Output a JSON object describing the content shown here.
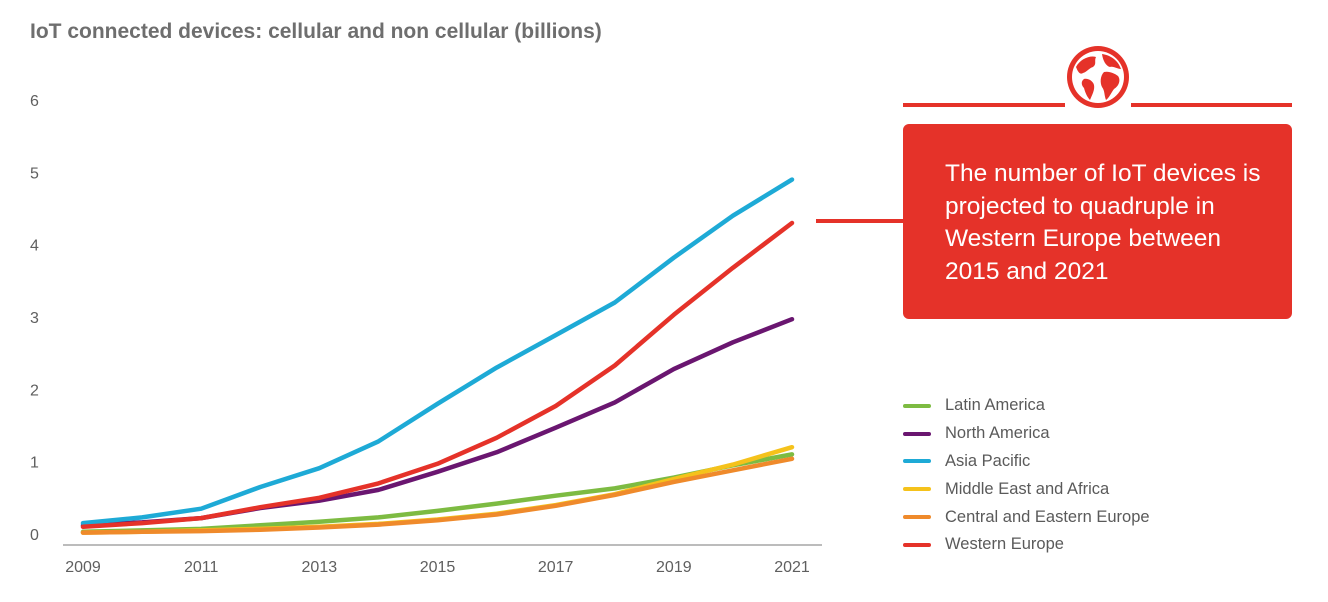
{
  "chart_data": {
    "type": "line",
    "title": "IoT connected devices: cellular and non cellular (billions)",
    "xlabel": "",
    "ylabel": "",
    "x": [
      2009,
      2010,
      2011,
      2012,
      2013,
      2014,
      2015,
      2016,
      2017,
      2018,
      2019,
      2020,
      2021
    ],
    "x_ticks": [
      "2009",
      "2011",
      "2013",
      "2015",
      "2017",
      "2019",
      "2021"
    ],
    "y_ticks": [
      "0",
      "1",
      "2",
      "3",
      "4",
      "5",
      "6"
    ],
    "xlim": [
      2009,
      2021
    ],
    "ylim": [
      0,
      6
    ],
    "grid": false,
    "legend_position": "right",
    "series": [
      {
        "name": "Latin America",
        "color": "#7dbb42",
        "values": [
          0.03,
          0.05,
          0.07,
          0.12,
          0.17,
          0.23,
          0.32,
          0.42,
          0.53,
          0.63,
          0.78,
          0.95,
          1.1
        ]
      },
      {
        "name": "North America",
        "color": "#6a1670",
        "values": [
          0.12,
          0.16,
          0.22,
          0.36,
          0.46,
          0.61,
          0.86,
          1.13,
          1.47,
          1.82,
          2.28,
          2.65,
          2.97
        ]
      },
      {
        "name": "Asia Pacific",
        "color": "#1eaad6",
        "values": [
          0.15,
          0.23,
          0.35,
          0.65,
          0.91,
          1.28,
          1.8,
          2.3,
          2.75,
          3.2,
          3.82,
          4.4,
          4.9
        ]
      },
      {
        "name": "Middle East and Africa",
        "color": "#f5c21b",
        "values": [
          0.02,
          0.03,
          0.05,
          0.07,
          0.1,
          0.14,
          0.2,
          0.28,
          0.4,
          0.55,
          0.76,
          0.96,
          1.2
        ]
      },
      {
        "name": "Central and Eastern Europe",
        "color": "#ef8a2b",
        "values": [
          0.02,
          0.03,
          0.04,
          0.06,
          0.09,
          0.13,
          0.19,
          0.27,
          0.39,
          0.54,
          0.72,
          0.88,
          1.04
        ]
      },
      {
        "name": "Western Europe",
        "color": "#e53229",
        "values": [
          0.1,
          0.15,
          0.22,
          0.37,
          0.5,
          0.7,
          0.97,
          1.33,
          1.77,
          2.33,
          3.03,
          3.68,
          4.3
        ]
      }
    ]
  },
  "callout": {
    "text": "The number of IoT devices is projected to quadruple in Western Europe between 2015 and 2021",
    "color": "#e53229",
    "icon": "globe-icon"
  },
  "colors": {
    "axis": "#a6a6a6",
    "tick_text": "#5f5f5f",
    "title_text": "#6e6e6e",
    "accent": "#e53229"
  }
}
